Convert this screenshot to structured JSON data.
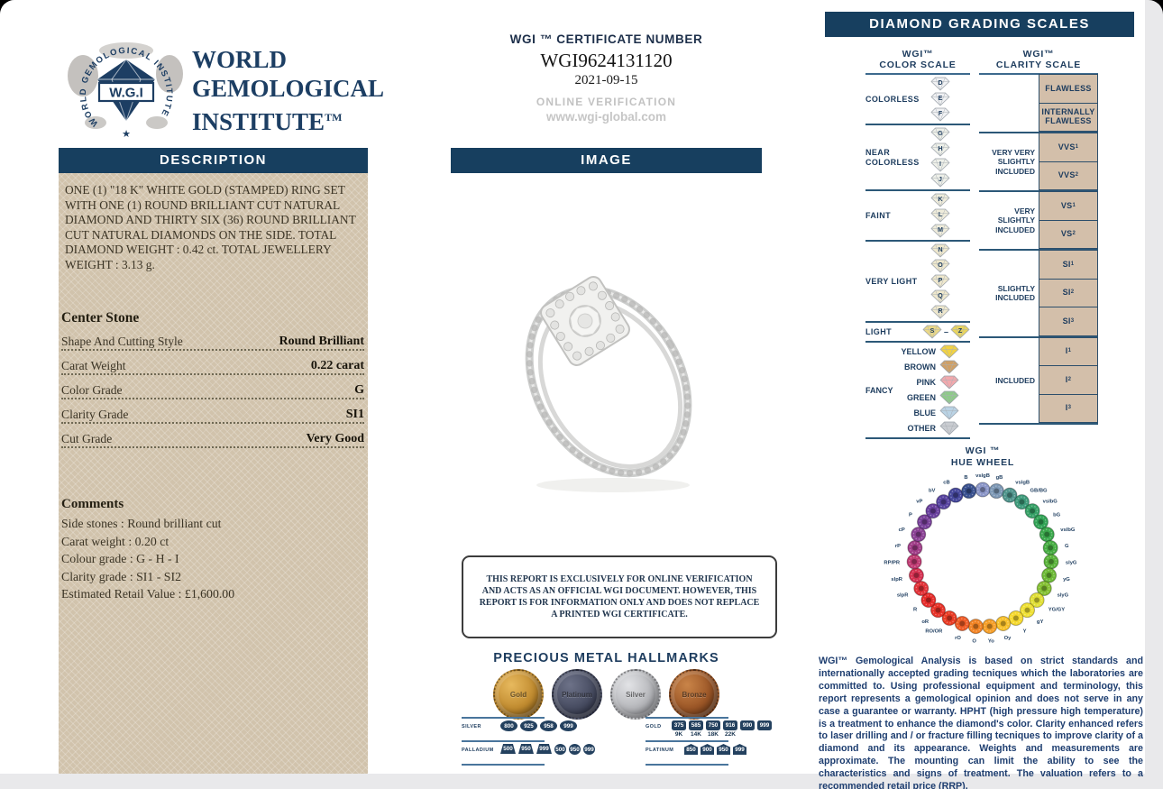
{
  "colors": {
    "navy": "#173f5f",
    "panel_tan": "#d4c6af",
    "box_tan": "#d3bfaa",
    "badge_navy": "#24415f"
  },
  "logo": {
    "ring_text": "WORLD GEMOLOGICAL INSTITUTE",
    "monogram": "W.G.I",
    "star": "★"
  },
  "left": {
    "institute_lines": [
      "WORLD",
      "GEMOLOGICAL",
      "INSTITUTE"
    ],
    "tm": "TM",
    "description_title": "DESCRIPTION",
    "description_text": "ONE (1) \"18 K\" WHITE GOLD (STAMPED) RING SET WITH ONE (1) ROUND BRILLIANT CUT NATURAL DIAMOND AND THIRTY SIX (36) ROUND BRILLIANT CUT NATURAL DIAMONDS ON THE SIDE. TOTAL DIAMOND WEIGHT : 0.42 ct. TOTAL JEWELLERY WEIGHT : 3.13 g.",
    "center_stone": {
      "title": "Center Stone",
      "rows": [
        {
          "label": "Shape And Cutting Style",
          "value": "Round Brilliant"
        },
        {
          "label": "Carat Weight",
          "value": "0.22 carat"
        },
        {
          "label": "Color Grade",
          "value": "G"
        },
        {
          "label": "Clarity Grade",
          "value": "SI1"
        },
        {
          "label": "Cut Grade",
          "value": "Very Good"
        }
      ]
    },
    "comments": {
      "title": "Comments",
      "lines": [
        "Side stones : Round brilliant cut",
        "Carat weight : 0.20 ct",
        "Colour grade : G - H - I",
        "Clarity grade : SI1 - SI2",
        "Estimated Retail Value : £1,600.00"
      ]
    }
  },
  "middle": {
    "cert_label": "WGI ™ CERTIFICATE NUMBER",
    "cert_number": "WGI9624131120",
    "cert_date": "2021-09-15",
    "online_verification": "ONLINE VERIFICATION",
    "website": "www.wgi-global.com",
    "image_title": "IMAGE",
    "disclaimer": "THIS REPORT IS EXCLUSIVELY FOR ONLINE VERIFICATION AND ACTS AS AN OFFICIAL WGI DOCUMENT. HOWEVER, THIS REPORT IS FOR INFORMATION ONLY AND DOES NOT REPLACE A PRINTED WGI CERTIFICATE.",
    "hallmarks_title": "PRECIOUS METAL HALLMARKS",
    "medals": [
      {
        "name": "Gold",
        "base": "#c08a2e",
        "light": "#e7b95e",
        "dark": "#7d5413"
      },
      {
        "name": "Platinum",
        "base": "#464b60",
        "light": "#6d7288",
        "dark": "#23263a"
      },
      {
        "name": "Silver",
        "base": "#b4b5b9",
        "light": "#e2e3e6",
        "dark": "#84868c"
      },
      {
        "name": "Bronze",
        "base": "#9a5526",
        "light": "#c98448",
        "dark": "#5d2f13"
      }
    ],
    "hallmark_groups": [
      {
        "rows": [
          {
            "metal": "SILVER",
            "badges": [
              {
                "shape": "oval",
                "v": "800"
              },
              {
                "shape": "oval",
                "v": "925"
              },
              {
                "shape": "oval",
                "v": "958"
              },
              {
                "shape": "oval",
                "v": "999"
              }
            ]
          },
          {
            "metal": "PALLADIUM",
            "badges": [
              {
                "shape": "trap",
                "v": "500"
              },
              {
                "shape": "trap",
                "v": "950"
              },
              {
                "shape": "trap",
                "v": "999"
              },
              {
                "shape": "circ",
                "v": "500"
              },
              {
                "shape": "circ",
                "v": "950"
              },
              {
                "shape": "circ",
                "v": "999"
              }
            ]
          }
        ]
      },
      {
        "rows": [
          {
            "metal": "GOLD",
            "badges": [
              {
                "shape": "rect",
                "v": "375",
                "cap": "9K"
              },
              {
                "shape": "rect",
                "v": "585",
                "cap": "14K"
              },
              {
                "shape": "rect",
                "v": "750",
                "cap": "18K"
              },
              {
                "shape": "rect",
                "v": "916",
                "cap": "22K"
              },
              {
                "shape": "rect",
                "v": "990"
              },
              {
                "shape": "rect",
                "v": "999"
              }
            ]
          },
          {
            "metal": "PLATINUM",
            "badges": [
              {
                "shape": "house",
                "v": "850"
              },
              {
                "shape": "house",
                "v": "900"
              },
              {
                "shape": "house",
                "v": "950"
              },
              {
                "shape": "house",
                "v": "999"
              }
            ]
          }
        ]
      }
    ]
  },
  "right": {
    "title": "DIAMOND GRADING SCALES",
    "color_scale": {
      "title1": "WGI™",
      "title2": "COLOR SCALE",
      "groups": [
        {
          "label": "COLORLESS",
          "letters": [
            "D",
            "E",
            "F"
          ],
          "tint": "#f0f1f3"
        },
        {
          "label": "NEAR COLORLESS",
          "letters": [
            "G",
            "H",
            "I",
            "J"
          ],
          "tint": "#eef0e9"
        },
        {
          "label": "FAINT",
          "letters": [
            "K",
            "L",
            "M"
          ],
          "tint": "#efecdb"
        },
        {
          "label": "VERY LIGHT",
          "letters": [
            "N",
            "O",
            "P",
            "Q",
            "R"
          ],
          "tint": "#efe8cd"
        },
        {
          "label": "LIGHT",
          "letters": [
            "S",
            "Z"
          ],
          "tint": "#ead887",
          "inline": true
        }
      ],
      "fancy": {
        "label": "FANCY",
        "rows": [
          {
            "name": "YELLOW",
            "color": "#f1d244"
          },
          {
            "name": "BROWN",
            "color": "#cfa066"
          },
          {
            "name": "PINK",
            "color": "#f2a9ad"
          },
          {
            "name": "GREEN",
            "color": "#8fca8a"
          },
          {
            "name": "BLUE",
            "color": "#bad3e5"
          },
          {
            "name": "OTHER",
            "color": "#c9ccd1"
          }
        ]
      }
    },
    "clarity_scale": {
      "title1": "WGI™",
      "title2": "CLARITY SCALE",
      "groups": [
        {
          "label": "",
          "lined": false,
          "boxes": [
            {
              "t": "FLAWLESS"
            },
            {
              "t": "INTERNALLY FLAWLESS"
            }
          ]
        },
        {
          "label": "VERY VERY SLIGHTLY INCLUDED",
          "lined": true,
          "boxes": [
            {
              "t": "VVS",
              "sub": "1"
            },
            {
              "t": "VVS",
              "sub": "2"
            }
          ]
        },
        {
          "label": "VERY SLIGHTLY INCLUDED",
          "lined": true,
          "boxes": [
            {
              "t": "VS",
              "sub": "1"
            },
            {
              "t": "VS",
              "sub": "2"
            }
          ]
        },
        {
          "label": "SLIGHTLY INCLUDED",
          "lined": true,
          "boxes": [
            {
              "t": "SI",
              "sub": "1"
            },
            {
              "t": "SI",
              "sub": "2"
            },
            {
              "t": "SI",
              "sub": "3"
            }
          ]
        },
        {
          "label": "INCLUDED",
          "lined": true,
          "boxes": [
            {
              "t": "I",
              "sub": "1"
            },
            {
              "t": "I",
              "sub": "2"
            },
            {
              "t": "I",
              "sub": "3"
            }
          ]
        }
      ]
    },
    "hue_wheel": {
      "title1": "WGI ™",
      "title2": "HUE WHEEL",
      "nodes": [
        {
          "label": "vslgB",
          "color": "#8b96c8"
        },
        {
          "label": "gB",
          "color": "#7d98b5"
        },
        {
          "label": "vslgB",
          "color": "#4f948c"
        },
        {
          "label": "GB/BG",
          "color": "#3d9a7a"
        },
        {
          "label": "vslbG",
          "color": "#36a066"
        },
        {
          "label": "bG",
          "color": "#32a356"
        },
        {
          "label": "vslbG",
          "color": "#3aa74b"
        },
        {
          "label": "G",
          "color": "#47ad43"
        },
        {
          "label": "slyG",
          "color": "#5ab33b"
        },
        {
          "label": "yG",
          "color": "#6cb936"
        },
        {
          "label": "slyG",
          "color": "#84c033"
        },
        {
          "label": "YG/GY",
          "color": "#e0df35"
        },
        {
          "label": "gY",
          "color": "#efe033"
        },
        {
          "label": "Y",
          "color": "#f6d92e"
        },
        {
          "label": "Oy",
          "color": "#f8c02a"
        },
        {
          "label": "Yo",
          "color": "#f59e27"
        },
        {
          "label": "O",
          "color": "#f28324"
        },
        {
          "label": "rO",
          "color": "#ee5a25"
        },
        {
          "label": "RO/OR",
          "color": "#e93b24"
        },
        {
          "label": "oR",
          "color": "#e73127"
        },
        {
          "label": "R",
          "color": "#e62b29"
        },
        {
          "label": "slpR",
          "color": "#e23238"
        },
        {
          "label": "slpR",
          "color": "#d53050"
        },
        {
          "label": "RP/PR",
          "color": "#bf3a72"
        },
        {
          "label": "rP",
          "color": "#a03d88"
        },
        {
          "label": "cP",
          "color": "#8a4194"
        },
        {
          "label": "P",
          "color": "#784099"
        },
        {
          "label": "vP",
          "color": "#693f9d"
        },
        {
          "label": "bV",
          "color": "#57439f"
        },
        {
          "label": "cB",
          "color": "#45479b"
        },
        {
          "label": "B",
          "color": "#39508e"
        }
      ]
    },
    "footer_text": "WGI™ Gemological Analysis is based on strict standards and internationally accepted grading tecniques which the laboratories are committed to. Using professional equipment and terminology, this report represents a gemological opinion and does not serve in any case a guarantee or warranty. HPHT (high pressure high temperature) is a treatment to enhance the diamond's color. Clarity enhanced refers to laser drilling and / or fracture filling tecniques to improve clarity of a diamond and its appearance. Weights and measurements are approximate. The mounting can limit the ability to see the characteristics and signs of treatment. The valuation refers to a recommended retail price (RRP)."
  }
}
